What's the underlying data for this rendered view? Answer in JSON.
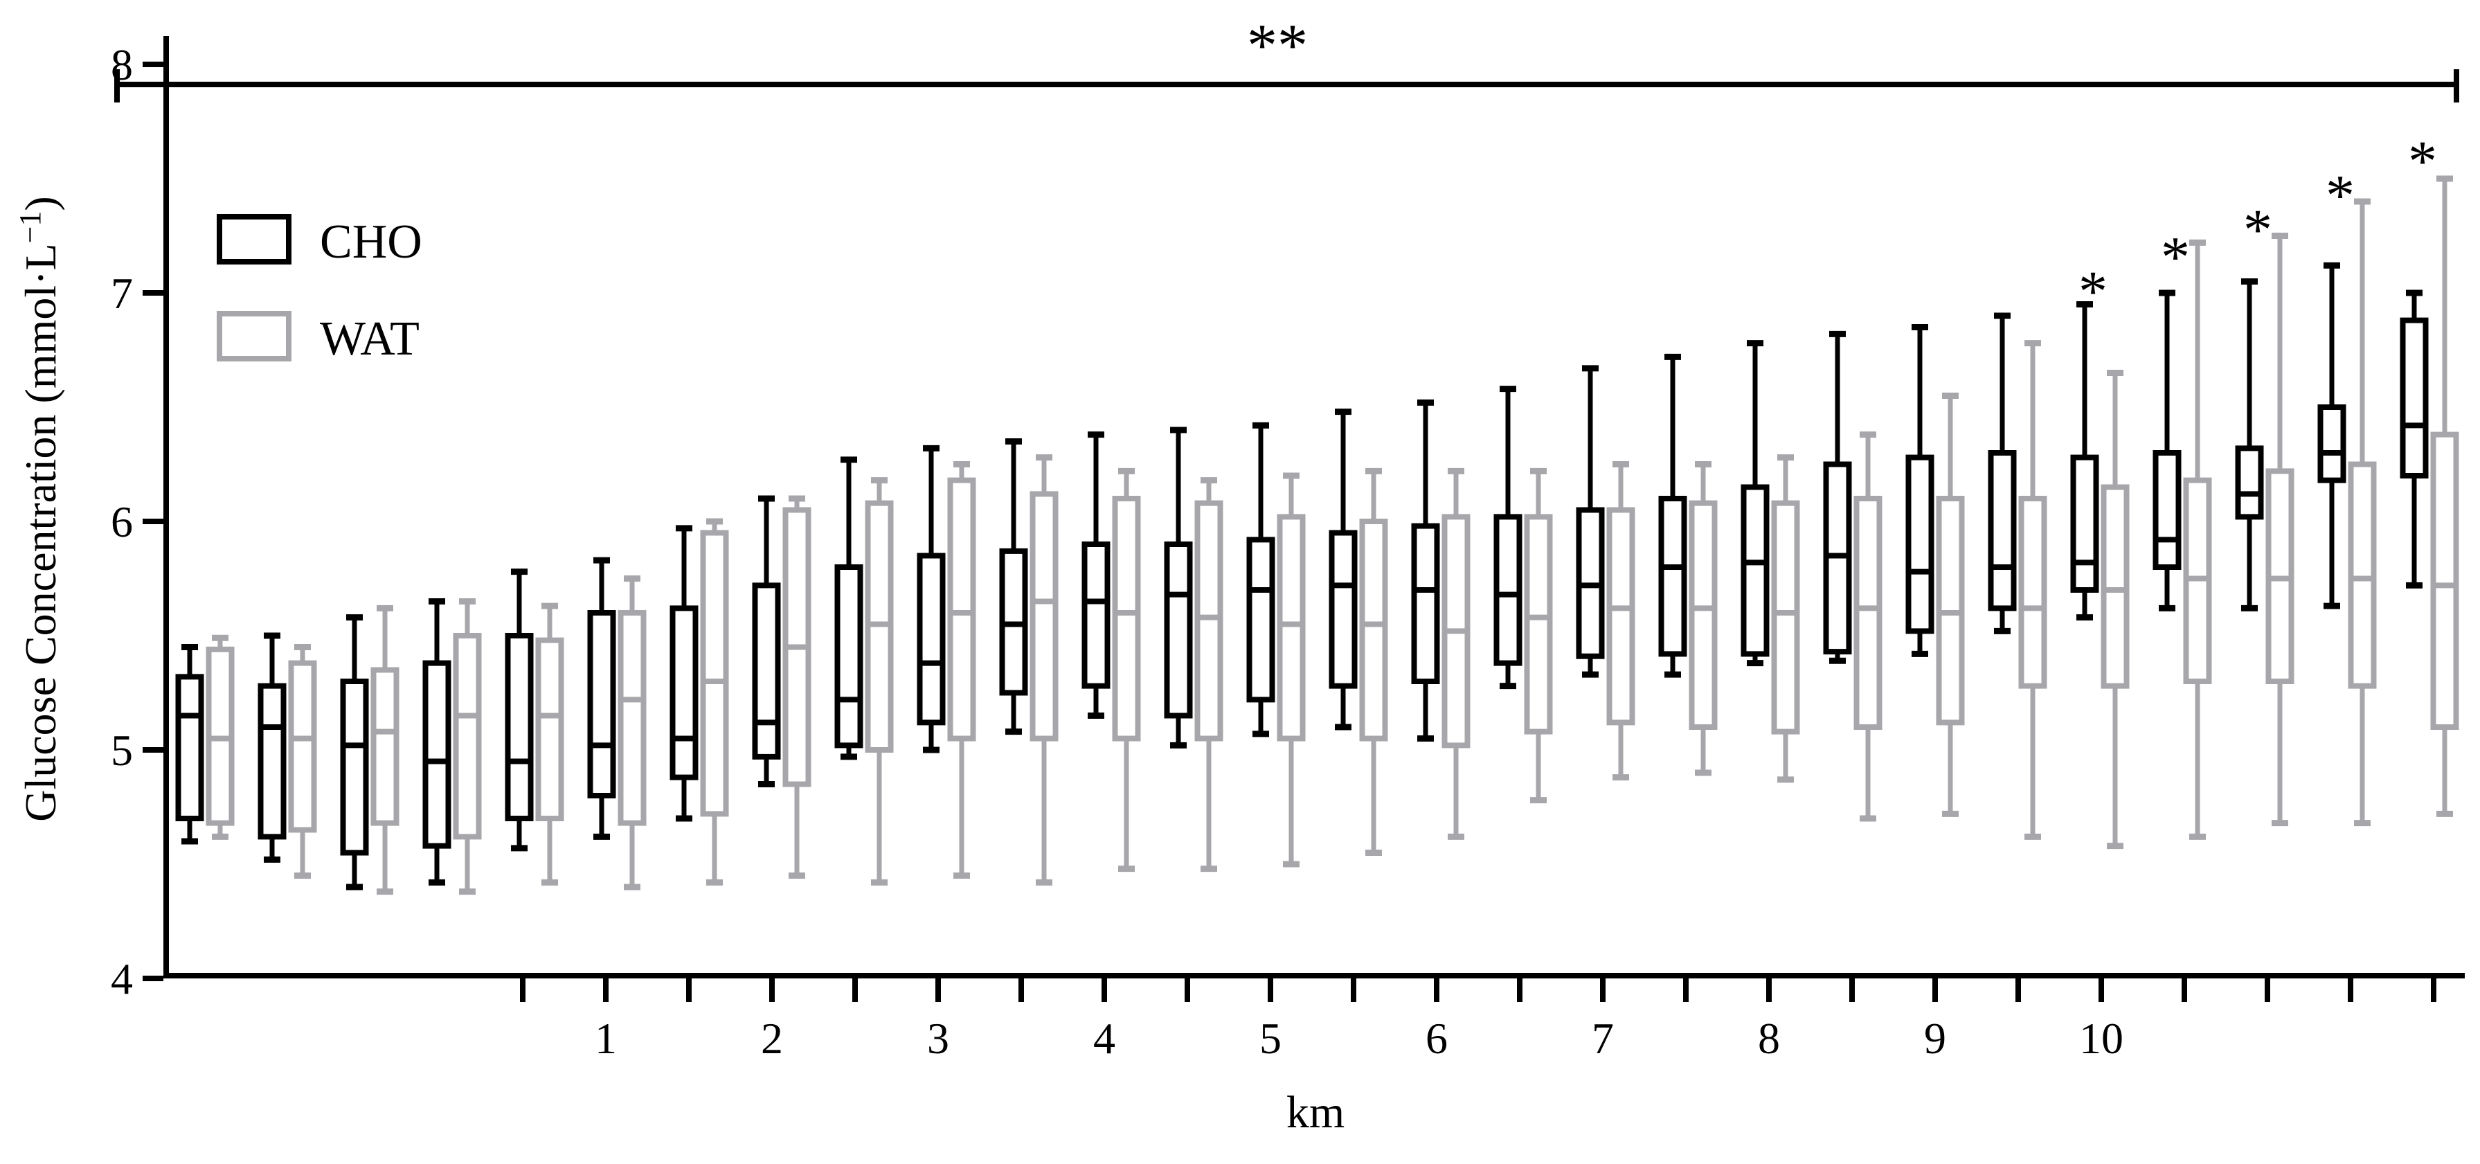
{
  "figure": {
    "background_color": "#ffffff",
    "axis_color": "#000000",
    "cho_color": "#000000",
    "wat_color": "#a7a7ab"
  },
  "legend": {
    "items": [
      {
        "label": "CHO",
        "color": "#000000"
      },
      {
        "label": "WAT",
        "color": "#a7a7ab"
      }
    ]
  },
  "axes": {
    "y": {
      "label": "Glucose Concentration (mmol·L⁻¹)",
      "tick_values": [
        8,
        7,
        6,
        5,
        4
      ],
      "range": [
        4,
        8
      ]
    },
    "x": {
      "label": "km",
      "tick_labels": [
        1,
        2,
        3,
        4,
        5,
        6,
        7,
        8,
        9,
        10
      ],
      "minor_ticks_count": 24
    }
  },
  "significance": {
    "overall_symbol": "**",
    "point_symbol": "*",
    "starred_pair_indices": [
      24,
      25,
      26,
      27,
      28
    ]
  },
  "chart_data": {
    "type": "boxplot",
    "title": "",
    "xlabel": "km",
    "ylabel": "Glucose Concentration (mmol·L⁻¹)",
    "ylim": [
      4,
      8
    ],
    "x_tick_labels": [
      1,
      2,
      3,
      4,
      5,
      6,
      7,
      8,
      9,
      10
    ],
    "n_pairs": 28,
    "legend_position": "upper-left-inside",
    "grid": false,
    "overall_significance": {
      "symbol": "**",
      "span": "entire-axis",
      "level_y": 7.9
    },
    "star_values_y": [
      7.05,
      7.2,
      7.32,
      7.47,
      7.62
    ],
    "series": [
      {
        "name": "CHO",
        "color": "#000000",
        "boxes": [
          {
            "wlo": 4.6,
            "q1": 4.7,
            "med": 5.15,
            "q3": 5.32,
            "whi": 5.45
          },
          {
            "wlo": 4.52,
            "q1": 4.62,
            "med": 5.1,
            "q3": 5.28,
            "whi": 5.5
          },
          {
            "wlo": 4.4,
            "q1": 4.55,
            "med": 5.02,
            "q3": 5.3,
            "whi": 5.58
          },
          {
            "wlo": 4.42,
            "q1": 4.58,
            "med": 4.95,
            "q3": 5.38,
            "whi": 5.65
          },
          {
            "wlo": 4.57,
            "q1": 4.7,
            "med": 4.95,
            "q3": 5.5,
            "whi": 5.78
          },
          {
            "wlo": 4.62,
            "q1": 4.8,
            "med": 5.02,
            "q3": 5.6,
            "whi": 5.83
          },
          {
            "wlo": 4.7,
            "q1": 4.88,
            "med": 5.05,
            "q3": 5.62,
            "whi": 5.97
          },
          {
            "wlo": 4.85,
            "q1": 4.97,
            "med": 5.12,
            "q3": 5.72,
            "whi": 6.1
          },
          {
            "wlo": 4.97,
            "q1": 5.02,
            "med": 5.22,
            "q3": 5.8,
            "whi": 6.27
          },
          {
            "wlo": 5.0,
            "q1": 5.12,
            "med": 5.38,
            "q3": 5.85,
            "whi": 6.32
          },
          {
            "wlo": 5.08,
            "q1": 5.25,
            "med": 5.55,
            "q3": 5.87,
            "whi": 6.35
          },
          {
            "wlo": 5.15,
            "q1": 5.28,
            "med": 5.65,
            "q3": 5.9,
            "whi": 6.38
          },
          {
            "wlo": 5.02,
            "q1": 5.15,
            "med": 5.68,
            "q3": 5.9,
            "whi": 6.4
          },
          {
            "wlo": 5.07,
            "q1": 5.22,
            "med": 5.7,
            "q3": 5.92,
            "whi": 6.42
          },
          {
            "wlo": 5.1,
            "q1": 5.28,
            "med": 5.72,
            "q3": 5.95,
            "whi": 6.48
          },
          {
            "wlo": 5.05,
            "q1": 5.3,
            "med": 5.7,
            "q3": 5.98,
            "whi": 6.52
          },
          {
            "wlo": 5.28,
            "q1": 5.38,
            "med": 5.68,
            "q3": 6.02,
            "whi": 6.58
          },
          {
            "wlo": 5.33,
            "q1": 5.41,
            "med": 5.72,
            "q3": 6.05,
            "whi": 6.67
          },
          {
            "wlo": 5.33,
            "q1": 5.42,
            "med": 5.8,
            "q3": 6.1,
            "whi": 6.72
          },
          {
            "wlo": 5.38,
            "q1": 5.42,
            "med": 5.82,
            "q3": 6.15,
            "whi": 6.78
          },
          {
            "wlo": 5.39,
            "q1": 5.43,
            "med": 5.85,
            "q3": 6.25,
            "whi": 6.82
          },
          {
            "wlo": 5.42,
            "q1": 5.52,
            "med": 5.78,
            "q3": 6.28,
            "whi": 6.85
          },
          {
            "wlo": 5.52,
            "q1": 5.62,
            "med": 5.8,
            "q3": 6.3,
            "whi": 6.9
          },
          {
            "wlo": 5.58,
            "q1": 5.7,
            "med": 5.82,
            "q3": 6.28,
            "whi": 6.95
          },
          {
            "wlo": 5.62,
            "q1": 5.8,
            "med": 5.92,
            "q3": 6.3,
            "whi": 7.0
          },
          {
            "wlo": 5.62,
            "q1": 6.02,
            "med": 6.12,
            "q3": 6.32,
            "whi": 7.05
          },
          {
            "wlo": 5.63,
            "q1": 6.18,
            "med": 6.3,
            "q3": 6.5,
            "whi": 7.12
          },
          {
            "wlo": 5.72,
            "q1": 6.2,
            "med": 6.42,
            "q3": 6.88,
            "whi": 7.0
          }
        ]
      },
      {
        "name": "WAT",
        "color": "#a7a7ab",
        "boxes": [
          {
            "wlo": 4.62,
            "q1": 4.68,
            "med": 5.05,
            "q3": 5.44,
            "whi": 5.49
          },
          {
            "wlo": 4.45,
            "q1": 4.65,
            "med": 5.05,
            "q3": 5.38,
            "whi": 5.45
          },
          {
            "wlo": 4.38,
            "q1": 4.68,
            "med": 5.08,
            "q3": 5.35,
            "whi": 5.62
          },
          {
            "wlo": 4.38,
            "q1": 4.62,
            "med": 5.15,
            "q3": 5.5,
            "whi": 5.65
          },
          {
            "wlo": 4.42,
            "q1": 4.7,
            "med": 5.15,
            "q3": 5.48,
            "whi": 5.63
          },
          {
            "wlo": 4.4,
            "q1": 4.68,
            "med": 5.22,
            "q3": 5.6,
            "whi": 5.75
          },
          {
            "wlo": 4.42,
            "q1": 4.72,
            "med": 5.3,
            "q3": 5.95,
            "whi": 6.0
          },
          {
            "wlo": 4.45,
            "q1": 4.85,
            "med": 5.45,
            "q3": 6.05,
            "whi": 6.1
          },
          {
            "wlo": 4.42,
            "q1": 5.0,
            "med": 5.55,
            "q3": 6.08,
            "whi": 6.18
          },
          {
            "wlo": 4.45,
            "q1": 5.05,
            "med": 5.6,
            "q3": 6.18,
            "whi": 6.25
          },
          {
            "wlo": 4.42,
            "q1": 5.05,
            "med": 5.65,
            "q3": 6.12,
            "whi": 6.28
          },
          {
            "wlo": 4.48,
            "q1": 5.05,
            "med": 5.6,
            "q3": 6.1,
            "whi": 6.22
          },
          {
            "wlo": 4.48,
            "q1": 5.05,
            "med": 5.58,
            "q3": 6.08,
            "whi": 6.18
          },
          {
            "wlo": 4.5,
            "q1": 5.05,
            "med": 5.55,
            "q3": 6.02,
            "whi": 6.2
          },
          {
            "wlo": 4.55,
            "q1": 5.05,
            "med": 5.55,
            "q3": 6.0,
            "whi": 6.22
          },
          {
            "wlo": 4.62,
            "q1": 5.02,
            "med": 5.52,
            "q3": 6.02,
            "whi": 6.22
          },
          {
            "wlo": 4.78,
            "q1": 5.08,
            "med": 5.58,
            "q3": 6.02,
            "whi": 6.22
          },
          {
            "wlo": 4.88,
            "q1": 5.12,
            "med": 5.62,
            "q3": 6.05,
            "whi": 6.25
          },
          {
            "wlo": 4.9,
            "q1": 5.1,
            "med": 5.62,
            "q3": 6.08,
            "whi": 6.25
          },
          {
            "wlo": 4.87,
            "q1": 5.08,
            "med": 5.6,
            "q3": 6.08,
            "whi": 6.28
          },
          {
            "wlo": 4.7,
            "q1": 5.1,
            "med": 5.62,
            "q3": 6.1,
            "whi": 6.38
          },
          {
            "wlo": 4.72,
            "q1": 5.12,
            "med": 5.6,
            "q3": 6.1,
            "whi": 6.55
          },
          {
            "wlo": 4.62,
            "q1": 5.28,
            "med": 5.62,
            "q3": 6.1,
            "whi": 6.78
          },
          {
            "wlo": 4.58,
            "q1": 5.28,
            "med": 5.7,
            "q3": 6.15,
            "whi": 6.65
          },
          {
            "wlo": 4.62,
            "q1": 5.3,
            "med": 5.75,
            "q3": 6.18,
            "whi": 7.22
          },
          {
            "wlo": 4.68,
            "q1": 5.3,
            "med": 5.75,
            "q3": 6.22,
            "whi": 7.25
          },
          {
            "wlo": 4.68,
            "q1": 5.28,
            "med": 5.75,
            "q3": 6.25,
            "whi": 7.4
          },
          {
            "wlo": 4.72,
            "q1": 5.1,
            "med": 5.72,
            "q3": 6.38,
            "whi": 7.5
          }
        ]
      }
    ]
  }
}
